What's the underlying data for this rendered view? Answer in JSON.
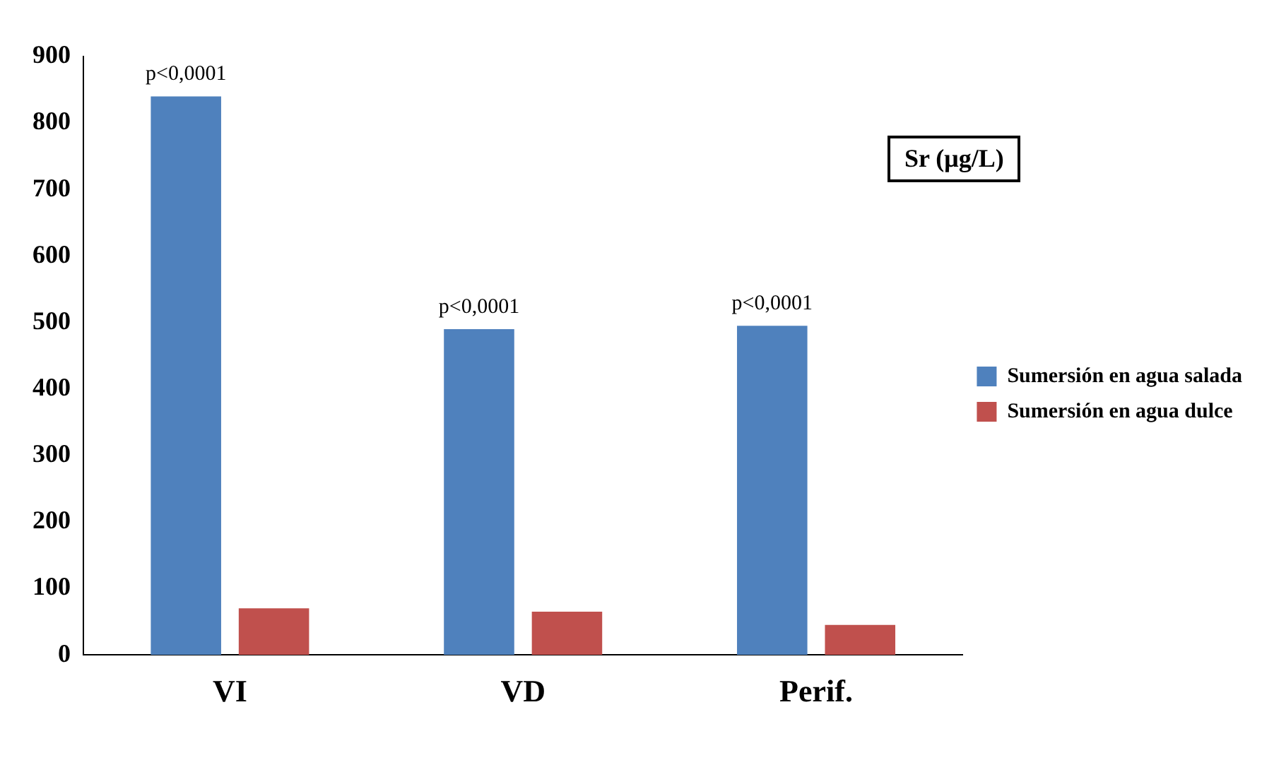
{
  "chart_data": {
    "type": "bar",
    "title": "Sr (μg/L)",
    "categories": [
      "VI",
      "VD",
      "Perif."
    ],
    "series": [
      {
        "name": "Sumersión en agua salada",
        "color": "#4f81bd",
        "values": [
          840,
          490,
          495
        ]
      },
      {
        "name": "Sumersión en agua dulce",
        "color": "#c0504d",
        "values": [
          70,
          65,
          45
        ]
      }
    ],
    "ylim": [
      0,
      900
    ],
    "yticks": [
      0,
      100,
      200,
      300,
      400,
      500,
      600,
      700,
      800,
      900
    ],
    "grid": false,
    "legend": "right",
    "annotations": [
      "p<0,0001",
      "p<0,0001",
      "p<0,0001"
    ]
  }
}
